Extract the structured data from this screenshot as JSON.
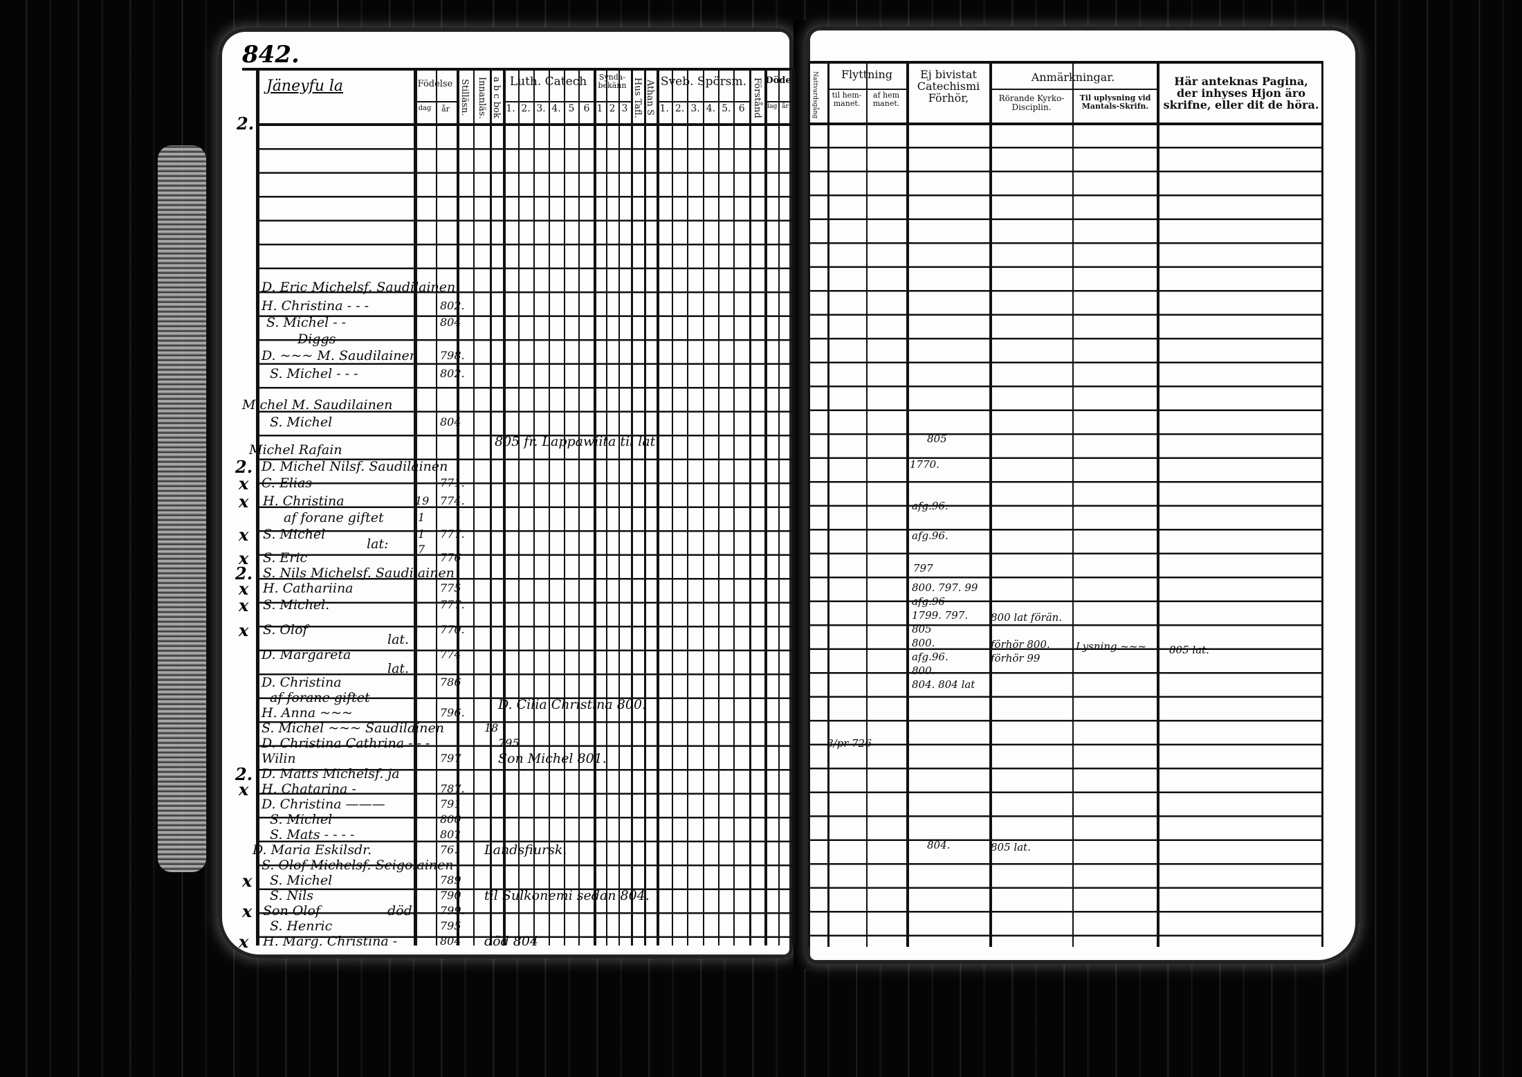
{
  "page_number": "842.",
  "village_heading": "Jäneyfu la",
  "left_headers": {
    "fodelse": "Födelse",
    "fodelse_sub": [
      "dag",
      "år"
    ],
    "stilat": "Stilläsn.",
    "innanlas": "Innanläs.",
    "abc": "a b c bok",
    "luth_catech": "Luth. Catech",
    "luth_nums": [
      "1.",
      "2.",
      "3.",
      "4.",
      "5",
      "6"
    ],
    "syndabekann": "Synda-bekänn",
    "synda_nums": [
      "1",
      "2",
      "3"
    ],
    "hus_tafl": "Hus Tafl.",
    "athan": "Athan S",
    "sveb_sporsm": "Sveb. Spörsm.",
    "sveb_nums": [
      "1.",
      "2.",
      "3.",
      "4.",
      "5.",
      "6"
    ],
    "forstand": "Förstånd",
    "dode": "Döde",
    "dode_sub": [
      "dag",
      "år"
    ]
  },
  "right_headers": {
    "narrow": "Nattvardsgång",
    "flyttning": "Flyttning",
    "til_hem": "til hem-manet.",
    "af_hem": "af hem manet.",
    "ej_bivistat": "Ej bivistat Catechismi Förhör,",
    "anmarkningar": "Anmärkningar.",
    "rorande": "Rörande Kyrko-Disciplin.",
    "til_uplysning": "Til uplysning vid Mantals-Skrifn.",
    "har_antecknas": "Här anteknas Pagina, der inhyses Hjon äro skrifne, eller dit de höra."
  },
  "margin_marks": [
    "2.",
    "2.",
    "2.",
    "2.",
    "x",
    "x",
    "x",
    "x",
    "x",
    "x",
    "x",
    "x",
    "x",
    "x",
    "x"
  ],
  "left_entries": [
    "D. Eric Michelsf. Saudilainen",
    "H. Christina - - -",
    "802.",
    "S. Michel - -",
    "804",
    "Diggs",
    "D. ~~~ M. Saudilainen",
    "798.",
    "S. Michel - - -",
    "802.",
    "Michel M. Saudilainen",
    "S. Michel",
    "804",
    "Michel Rafain",
    "805 fr. Lappawiita til lat.",
    "D. Michel Nilsf. Saudilainen",
    "C. Elias",
    "771.",
    "H. Christina",
    "774.",
    "19",
    "af forane giftet",
    "1",
    "S. Michel",
    "777.",
    "1",
    "7",
    "S. Eric",
    "lat:",
    "776",
    "S. Nils Michelsf. Saudilainen",
    "H. Cathariina",
    "775",
    "S. Michel.",
    "777.",
    "S. Olof",
    "770.",
    "D. Margareta",
    "lat.",
    "774",
    "D. Christina",
    "lat.",
    "786",
    "af forane giftet",
    "H. Anna ~~~",
    "796.",
    "D. Cilia Christina 800.",
    "S. Michel ~~~ Saudilainen",
    "18",
    "D. Christina Cathrina - - -",
    "795.",
    "Wilin",
    "797",
    "Son Michel 801.",
    "D. Matts Michelsf. ja",
    "H. Chatarina -",
    "787.",
    "D. Christina ———",
    "791",
    "S. Michel",
    "800",
    "S. Mats - - - -",
    "80?",
    "D. Maria Eskilsdr.",
    "76.",
    "Landsfiursk.",
    "S. Olof Michelsf. Seigolainen",
    "S. Michel",
    "789",
    "S. Nils",
    "790",
    "til Sulkonemi sedan 804.",
    "Son Olof",
    "död.",
    "799.",
    "S. Henric",
    "795",
    "H. Marg. Christina -",
    "804",
    "död 804"
  ],
  "right_entries": [
    "805",
    "1770.",
    "afg.96.",
    "afg.96.",
    "797",
    "800. 797. 99",
    "afg.96",
    "1799. 797.",
    "805",
    "800.",
    "afg.96.",
    "800.",
    "804. 804 lat",
    "800 lat förän.",
    "förhör 800.",
    "förhör 99",
    "Lysning ~~~",
    "805 lat.",
    "8/pr 726",
    "804.",
    "805 lat."
  ]
}
